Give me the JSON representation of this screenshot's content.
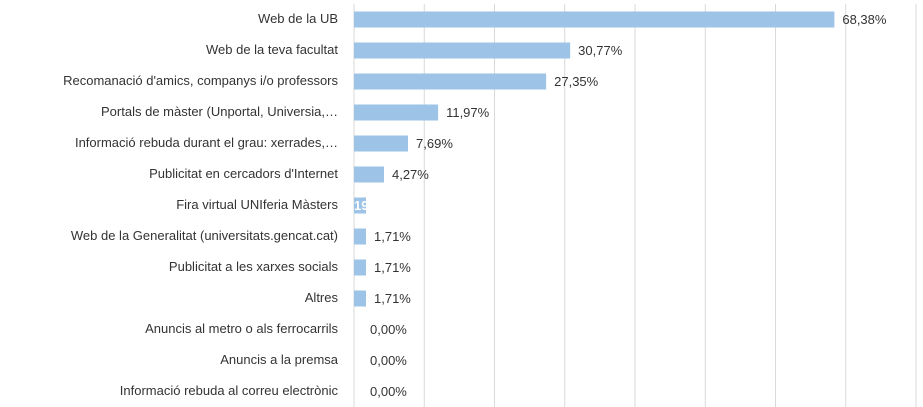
{
  "chart_data": {
    "type": "hbar",
    "categories": [
      "Web de la UB",
      "Web de la teva facultat",
      "Recomanació d'amics, companys i/o professors",
      "Portals de màster (Unportal, Universia,…",
      "Informació rebuda durant el grau: xerrades,…",
      "Publicitat en cercadors d'Internet",
      "Fira virtual UNIferia Màsters",
      "Web de la Generalitat (universitats.gencat.cat)",
      "Publicitat a les xarxes socials",
      "Altres",
      "Anuncis al metro o als ferrocarrils",
      "Anuncis a la premsa",
      "Informació rebuda al correu electrònic"
    ],
    "values": [
      68.38,
      30.77,
      27.35,
      11.97,
      7.69,
      4.27,
      1.71,
      1.71,
      1.71,
      1.71,
      0,
      0,
      0
    ],
    "value_labels": [
      "68,38%",
      "30,77%",
      "27,35%",
      "11,97%",
      "7,69%",
      "4,27%",
      null,
      "1,71%",
      "1,71%",
      "1,71%",
      "0,00%",
      "0,00%",
      "0,00%"
    ],
    "annotations": [
      {
        "category": 6,
        "text": "19"
      }
    ],
    "color": "#9dc3e6",
    "xlim": [
      0,
      80
    ],
    "xticks": [
      0,
      10,
      20,
      30,
      40,
      50,
      60,
      70,
      80
    ],
    "grid": true
  }
}
